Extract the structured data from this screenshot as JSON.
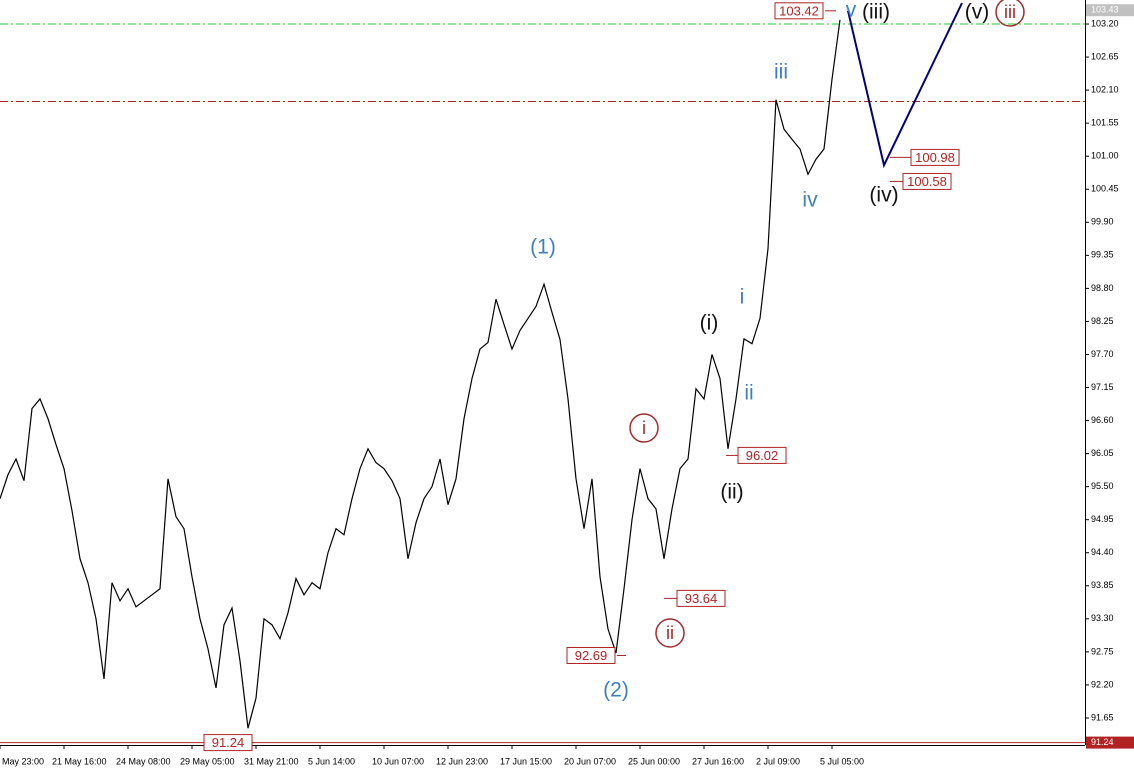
{
  "chart_data": {
    "type": "line",
    "color": "#000000",
    "categories": [
      "May 23:00",
      null,
      null,
      null,
      null,
      null,
      null,
      null,
      "21 May 16:00",
      null,
      null,
      null,
      null,
      null,
      null,
      null,
      "24 May 08:00",
      null,
      null,
      null,
      null,
      null,
      null,
      null,
      "29 May 05:00",
      null,
      null,
      null,
      null,
      null,
      null,
      null,
      "31 May 21:00",
      null,
      null,
      null,
      null,
      null,
      null,
      null,
      "5 Jun 14:00",
      null,
      null,
      null,
      null,
      null,
      null,
      null,
      "10 Jun 07:00",
      null,
      null,
      null,
      null,
      null,
      null,
      null,
      "12 Jun 23:00",
      null,
      null,
      null,
      null,
      null,
      null,
      null,
      "17 Jun 15:00",
      null,
      null,
      null,
      null,
      null,
      null,
      null,
      "20 Jun 07:00",
      null,
      null,
      null,
      null,
      null,
      null,
      null,
      "25 Jun 00:00",
      null,
      null,
      null,
      null,
      null,
      null,
      null,
      "27 Jun 16:00",
      null,
      null,
      null,
      null,
      null,
      null,
      null,
      "2 Jul 09:00",
      null,
      null,
      null,
      null,
      null,
      null,
      null,
      "5 Jul 05:00",
      null
    ],
    "values": [
      95.3,
      95.7,
      95.96,
      95.6,
      96.8,
      96.96,
      96.63,
      96.2,
      95.8,
      95.1,
      94.3,
      93.9,
      93.3,
      92.3,
      93.9,
      93.6,
      93.8,
      93.5,
      93.6,
      93.7,
      93.8,
      95.63,
      95.0,
      94.8,
      94.0,
      93.3,
      92.8,
      92.15,
      93.2,
      93.48,
      92.6,
      91.48,
      91.98,
      93.3,
      93.2,
      92.97,
      93.4,
      93.97,
      93.7,
      93.9,
      93.8,
      94.4,
      94.8,
      94.7,
      95.3,
      95.8,
      96.13,
      95.9,
      95.8,
      95.6,
      95.3,
      94.3,
      94.9,
      95.3,
      95.5,
      95.96,
      95.2,
      95.63,
      96.63,
      97.3,
      97.79,
      97.9,
      98.62,
      98.2,
      97.79,
      98.1,
      98.3,
      98.5,
      98.87,
      98.4,
      97.95,
      96.96,
      95.63,
      94.8,
      95.63,
      94.0,
      93.13,
      92.73,
      93.8,
      94.95,
      95.8,
      95.3,
      95.13,
      94.3,
      95.13,
      95.8,
      95.96,
      97.13,
      96.96,
      97.7,
      97.3,
      96.13,
      96.96,
      97.96,
      97.88,
      98.3,
      99.46,
      101.94,
      101.45,
      101.28,
      101.12,
      100.7,
      100.95,
      101.12,
      102.28,
      103.27
    ],
    "ylim": [
      91.2,
      103.6
    ],
    "yticks": [
      {
        "value": 103.2,
        "label": "103.20"
      },
      102.65,
      {
        "value": 102.1,
        "label": "102.10"
      },
      101.55,
      {
        "value": 101,
        "label": "101.00"
      },
      100.45,
      {
        "value": 99.9,
        "label": "99.90"
      },
      99.35,
      {
        "value": 98.8,
        "label": "98.80"
      },
      98.25,
      {
        "value": 97.7,
        "label": "97.70"
      },
      97.15,
      {
        "value": 96.6,
        "label": "96.60"
      },
      96.05,
      {
        "value": 95.5,
        "label": "95.50"
      },
      94.95,
      {
        "value": 94.4,
        "label": "94.40"
      },
      93.85,
      {
        "value": 93.3,
        "label": "93.30"
      },
      92.75,
      {
        "value": 92.2,
        "label": "92.20"
      },
      91.65
    ],
    "last_price": 103.43,
    "low_price": 91.24,
    "levels": [
      {
        "value": 103.2,
        "color": "#22cc22"
      },
      {
        "value": 101.91,
        "color": "#b22222"
      }
    ],
    "price_labels": [
      103.42,
      100.98,
      100.58,
      96.02,
      93.64,
      92.69,
      91.24
    ],
    "projection": {
      "color": "#000080",
      "values": [
        103.42,
        100.85,
        103.55
      ]
    },
    "wave_labels": [
      {
        "text": "(1)",
        "color": "#3d7fc1"
      },
      {
        "text": "(2)",
        "color": "#3d7fc1"
      },
      {
        "text": "i",
        "color": "#a52a2a",
        "circled": true
      },
      {
        "text": "ii",
        "color": "#a52a2a",
        "circled": true
      },
      {
        "text": "(i)",
        "color": "#111111"
      },
      {
        "text": "(ii)",
        "color": "#111111"
      },
      {
        "text": "i",
        "color": "#3d7fc1"
      },
      {
        "text": "ii",
        "color": "#3d7fc1"
      },
      {
        "text": "iii",
        "color": "#3d7fc1"
      },
      {
        "text": "iv",
        "color": "#3d7fc1"
      },
      {
        "text": "v",
        "color": "#3d7fc1"
      },
      {
        "text": "(iii)",
        "color": "#111111"
      },
      {
        "text": "(iv)",
        "color": "#111111"
      },
      {
        "text": "(v)",
        "color": "#111111"
      },
      {
        "text": "iii",
        "color": "#a52a2a",
        "circled": true
      }
    ]
  }
}
